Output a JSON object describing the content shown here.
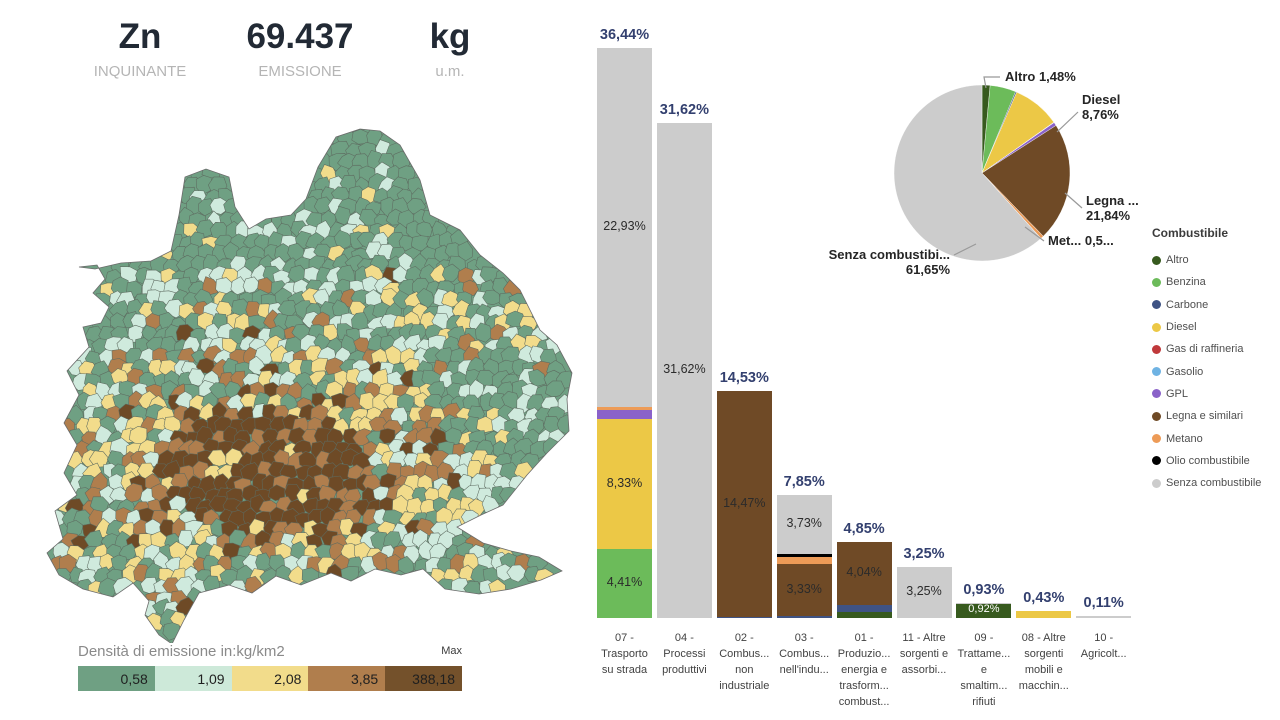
{
  "header": {
    "pollutant": {
      "value": "Zn",
      "label": "INQUINANTE"
    },
    "emission": {
      "value": "69.437",
      "label": "EMISSIONE"
    },
    "unit": {
      "value": "kg",
      "label": "u.m."
    }
  },
  "map": {
    "legend_title": "Densità di emissione in:kg/km2",
    "max_label": "Max",
    "scale": [
      {
        "value": "0,58",
        "color": "#6FA083"
      },
      {
        "value": "1,09",
        "color": "#CDE9D9"
      },
      {
        "value": "2,08",
        "color": "#F2DC8B"
      },
      {
        "value": "3,85",
        "color": "#B07E4D"
      },
      {
        "value": "388,18",
        "color": "#74512B"
      }
    ]
  },
  "fuel_colors": {
    "Altro": "#375A1E",
    "Benzina": "#6CBB5A",
    "Carbone": "#3F5384",
    "Diesel": "#ECC846",
    "Gas di raffineria": "#C0393B",
    "Gasolio": "#6FB3E3",
    "GPL": "#8A62C9",
    "Legna e similari": "#6F4A26",
    "Metano": "#ED9B57",
    "Olio combustibile": "#000000",
    "Senza combustibile": "#CCCCCC"
  },
  "fuel_legend": {
    "title": "Combustibile",
    "items": [
      "Altro",
      "Benzina",
      "Carbone",
      "Diesel",
      "Gas di raffineria",
      "Gasolio",
      "GPL",
      "Legna e similari",
      "Metano",
      "Olio combustibile",
      "Senza combustibile"
    ]
  },
  "chart_data": [
    {
      "type": "bar",
      "stacked": true,
      "unit": "%",
      "ylim": [
        0,
        38
      ],
      "grid": false,
      "legend_position": "right",
      "categories": [
        "07 - Trasporto su strada",
        "04 - Processi produttivi",
        "02 - Combus... non industriale",
        "03 - Combus... nell'indu...",
        "01 - Produzio... energia e trasform... combust...",
        "11 - Altre sorgenti e assorbi...",
        "09 - Trattame... e smaltim... rifiuti",
        "08 - Altre sorgenti mobili e macchin...",
        "10 - Agricolt..."
      ],
      "category_lines": [
        [
          "07 -",
          "Trasporto",
          "su strada"
        ],
        [
          "04 -",
          "Processi",
          "produttivi"
        ],
        [
          "02 -",
          "Combus...",
          "non",
          "industriale"
        ],
        [
          "03 -",
          "Combus...",
          "nell'indu..."
        ],
        [
          "01 -",
          "Produzio...",
          "energia e",
          "trasform...",
          "combust..."
        ],
        [
          "11 - Altre",
          "sorgenti e",
          "assorbi..."
        ],
        [
          "09 -",
          "Trattame...",
          "e",
          "smaltim...",
          "rifiuti"
        ],
        [
          "08 - Altre",
          "sorgenti",
          "mobili e",
          "macchin..."
        ],
        [
          "10 -",
          "Agricolt..."
        ]
      ],
      "totals": [
        "36,44%",
        "31,62%",
        "14,53%",
        "7,85%",
        "4,85%",
        "3,25%",
        "0,93%",
        "0,43%",
        "0,11%"
      ],
      "total_values": [
        36.44,
        31.62,
        14.53,
        7.85,
        4.85,
        3.25,
        0.93,
        0.43,
        0.11
      ],
      "bars": [
        [
          {
            "fuel": "Benzina",
            "value": 4.41,
            "label": "4,41%"
          },
          {
            "fuel": "Diesel",
            "value": 8.33,
            "label": "8,33%"
          },
          {
            "fuel": "GPL",
            "value": 0.57
          },
          {
            "fuel": "Metano",
            "value": 0.2
          },
          {
            "fuel": "Senza combustibile",
            "value": 22.93,
            "label": "22,93%"
          }
        ],
        [
          {
            "fuel": "Senza combustibile",
            "value": 31.62,
            "label": "31,62%"
          }
        ],
        [
          {
            "fuel": "Carbone",
            "value": 0.06
          },
          {
            "fuel": "Legna e similari",
            "value": 14.47,
            "label": "14,47%"
          }
        ],
        [
          {
            "fuel": "Carbone",
            "value": 0.12
          },
          {
            "fuel": "Legna e similari",
            "value": 3.33,
            "label": "3,33%"
          },
          {
            "fuel": "Metano",
            "value": 0.45
          },
          {
            "fuel": "Olio combustibile",
            "value": 0.22
          },
          {
            "fuel": "Senza combustibile",
            "value": 3.73,
            "label": "3,73%"
          }
        ],
        [
          {
            "fuel": "Altro",
            "value": 0.4
          },
          {
            "fuel": "Carbone",
            "value": 0.41
          },
          {
            "fuel": "Legna e similari",
            "value": 4.04,
            "label": "4,04%"
          }
        ],
        [
          {
            "fuel": "Senza combustibile",
            "value": 3.25,
            "label": "3,25%"
          }
        ],
        [
          {
            "fuel": "Altro",
            "value": 0.92,
            "label": "0,92%",
            "label_color": "#FFFFFF"
          },
          {
            "fuel": "Senza combustibile",
            "value": 0.01
          }
        ],
        [
          {
            "fuel": "Diesel",
            "value": 0.43
          }
        ],
        [
          {
            "fuel": "Senza combustibile",
            "value": 0.11
          }
        ]
      ]
    },
    {
      "type": "pie",
      "legend_title": "Combustibile",
      "slices": [
        {
          "name": "Altro",
          "value": 1.48,
          "label_lines": [
            "Altro 1,48%"
          ]
        },
        {
          "name": "Benzina",
          "value": 4.75
        },
        {
          "name": "Carbone",
          "value": 0.22
        },
        {
          "name": "Diesel",
          "value": 8.76,
          "label_lines": [
            "Diesel",
            "8,76%"
          ]
        },
        {
          "name": "Gas di raffineria",
          "value": 0.03
        },
        {
          "name": "Gasolio",
          "value": 0.05
        },
        {
          "name": "GPL",
          "value": 0.62
        },
        {
          "name": "Legna e similari",
          "value": 21.84,
          "label_lines": [
            "Legna ...",
            "21,84%"
          ]
        },
        {
          "name": "Metano",
          "value": 0.55,
          "label_lines": [
            "Met... 0,5..."
          ]
        },
        {
          "name": "Olio combustibile",
          "value": 0.04
        },
        {
          "name": "Senza combustibile",
          "value": 61.65,
          "label_lines": [
            "Senza combustibi...",
            "61,65%"
          ]
        }
      ]
    }
  ]
}
